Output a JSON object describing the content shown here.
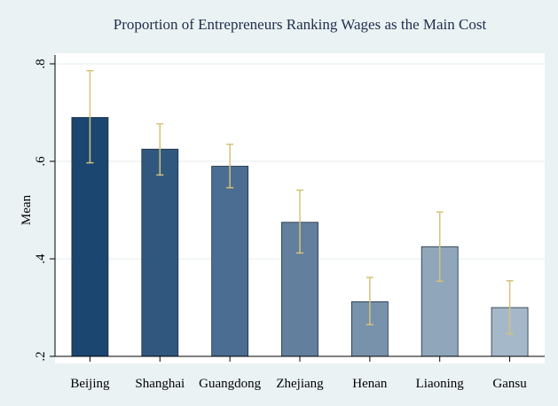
{
  "chart_data": {
    "type": "bar",
    "title": "Proportion of Entrepreneurs Ranking Wages as the Main Cost",
    "ylabel": "Mean",
    "xlabel": "",
    "ylim": [
      0.2,
      0.8
    ],
    "yticks": [
      {
        "value": 0.2,
        "label": ".2"
      },
      {
        "value": 0.4,
        "label": ".4"
      },
      {
        "value": 0.6,
        "label": ".6"
      },
      {
        "value": 0.8,
        "label": ".8"
      }
    ],
    "grid": true,
    "categories": [
      "Beijing",
      "Shanghai",
      "Guangdong",
      "Zhejiang",
      "Henan",
      "Liaoning",
      "Gansu"
    ],
    "values": [
      0.69,
      0.625,
      0.59,
      0.475,
      0.312,
      0.425,
      0.3
    ],
    "ci_low": [
      0.597,
      0.572,
      0.546,
      0.412,
      0.265,
      0.354,
      0.246
    ],
    "ci_high": [
      0.786,
      0.677,
      0.635,
      0.541,
      0.362,
      0.496,
      0.355
    ],
    "colors": {
      "bars": [
        "#1a4670",
        "#30587f",
        "#4a6d91",
        "#627f9d",
        "#7892ac",
        "#8fa6bb",
        "#a5b8c9"
      ],
      "errorbar": "#d4c27a",
      "plot_bg": "#ffffff",
      "outer_bg": "#eaf2f3",
      "grid": "#e6ecee",
      "axis": "#000000"
    }
  }
}
